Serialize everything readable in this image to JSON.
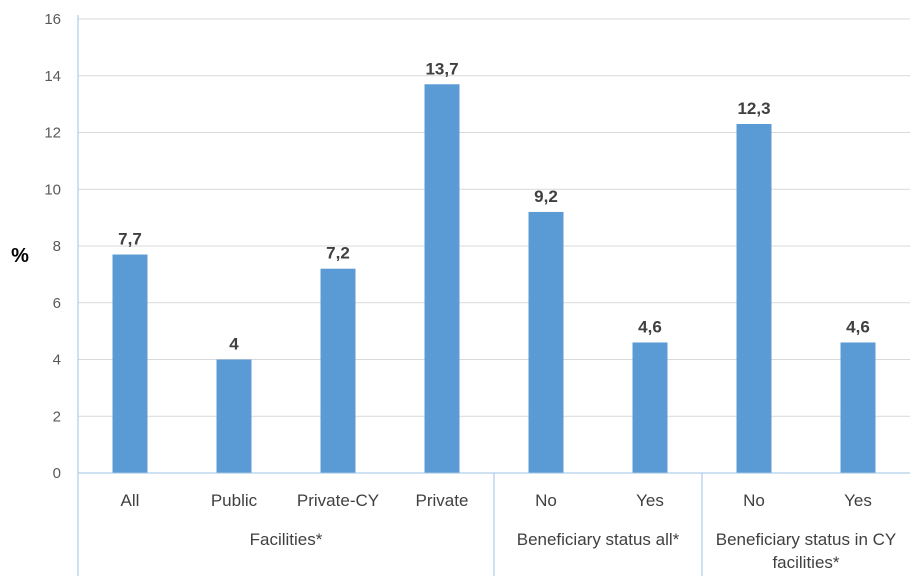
{
  "chart_data": {
    "type": "bar",
    "title": "",
    "ylabel": "%",
    "xlabel": "",
    "ylim": [
      0,
      16
    ],
    "yticks": [
      0,
      2,
      4,
      6,
      8,
      10,
      12,
      14,
      16
    ],
    "grid": true,
    "legend": "none",
    "bar_color": "#5B9BD5",
    "grid_color": "#D9D9D9",
    "axis_color": "#9DC3E6",
    "categories": [
      "All",
      "Public",
      "Private-CY",
      "Private",
      "No",
      "Yes",
      "No",
      "Yes"
    ],
    "values": [
      7.7,
      4,
      7.2,
      13.7,
      9.2,
      4.6,
      12.3,
      4.6
    ],
    "data_labels": [
      "7,7",
      "4",
      "7,2",
      "13,7",
      "9,2",
      "4,6",
      "12,3",
      "4,6"
    ],
    "groups": [
      {
        "label_lines": [
          "Facilities*"
        ],
        "count": 4
      },
      {
        "label_lines": [
          "Beneficiary status all*"
        ],
        "count": 2
      },
      {
        "label_lines": [
          "Beneficiary status in CY",
          "facilities*"
        ],
        "count": 2
      }
    ]
  }
}
